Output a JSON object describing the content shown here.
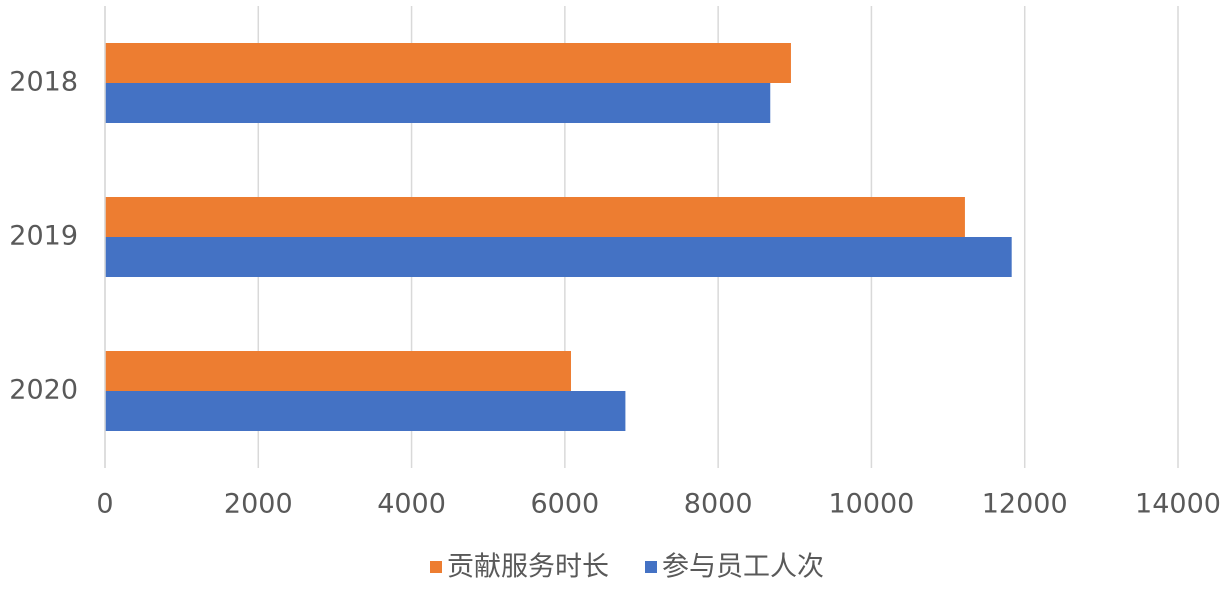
{
  "chart_data": {
    "type": "bar",
    "orientation": "horizontal",
    "categories": [
      "2018",
      "2019",
      "2020"
    ],
    "series": [
      {
        "name": "贡献服务时长",
        "color": "#ed7d31",
        "values": [
          8950,
          11220,
          6080
        ]
      },
      {
        "name": "参与员工人次",
        "color": "#4472c4",
        "values": [
          8680,
          11830,
          6790
        ]
      }
    ],
    "xlim": [
      0,
      14000
    ],
    "xticks": [
      0,
      2000,
      4000,
      6000,
      8000,
      10000,
      12000,
      14000
    ],
    "grid": true,
    "legend": "bottom"
  }
}
